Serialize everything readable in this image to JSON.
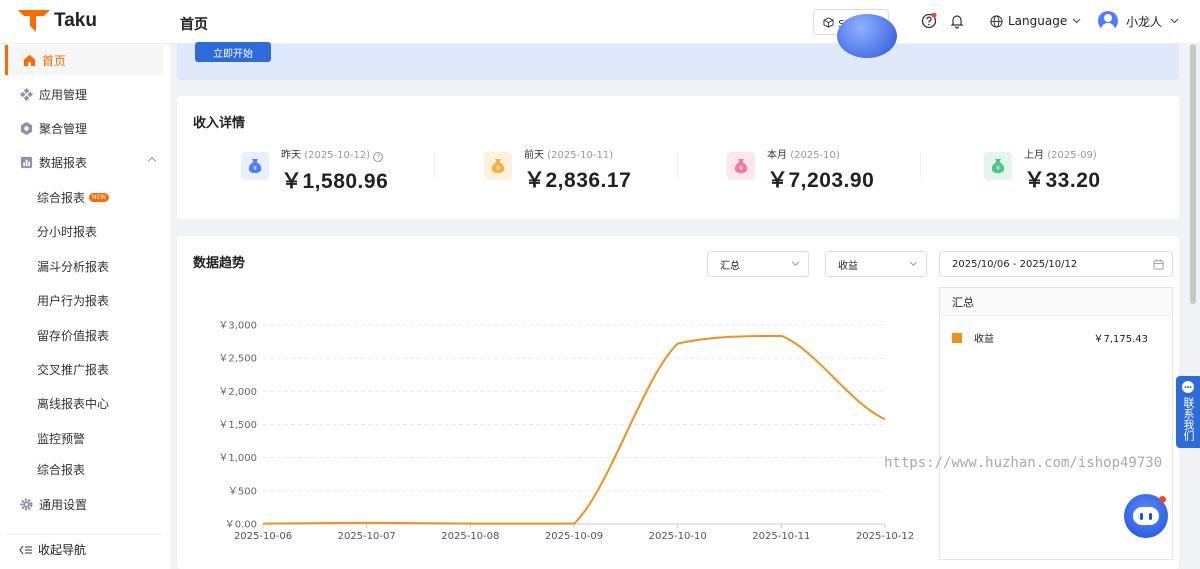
{
  "header": {
    "logo_text": "Taku",
    "page_title": "首页",
    "sdk_button": "SDK下载",
    "language": "Language",
    "username": "小龙人"
  },
  "sidebar": {
    "items": [
      {
        "label": "首页",
        "icon": "home-icon"
      },
      {
        "label": "应用管理",
        "icon": "apps-icon"
      },
      {
        "label": "聚合管理",
        "icon": "aggregate-icon"
      },
      {
        "label": "数据报表",
        "icon": "report-icon"
      },
      {
        "label": "综合报表",
        "badge": "NEW"
      },
      {
        "label": "分小时报表"
      },
      {
        "label": "漏斗分析报表"
      },
      {
        "label": "用户行为报表"
      },
      {
        "label": "留存价值报表"
      },
      {
        "label": "交叉推广报表"
      },
      {
        "label": "离线报表中心"
      },
      {
        "label": "监控预警"
      },
      {
        "label": "综合报表"
      },
      {
        "label": "通用设置",
        "icon": "settings-icon"
      }
    ],
    "collapse_label": "收起导航"
  },
  "banner": {
    "start_button": "立即开始"
  },
  "income": {
    "title": "收入详情",
    "stats": [
      {
        "label": "昨天",
        "date": "(2025-10-12)",
        "value": "￥1,580.96",
        "color": "#4f7cff",
        "bg": "#e8efff"
      },
      {
        "label": "前天",
        "date": "(2025-10-11)",
        "value": "￥2,836.17",
        "color": "#f5b23c",
        "bg": "#fdf1dc"
      },
      {
        "label": "本月",
        "date": "(2025-10)",
        "value": "￥7,203.90",
        "color": "#f27a9b",
        "bg": "#fde6ec"
      },
      {
        "label": "上月",
        "date": "(2025-09)",
        "value": "￥33.20",
        "color": "#4fc48a",
        "bg": "#e2f6ea"
      }
    ]
  },
  "trend": {
    "title": "数据趋势",
    "select_group": "汇总",
    "select_metric": "收益",
    "date_range": "2025/10/06 - 2025/10/12",
    "legend_title": "汇总",
    "legend_series": "收益",
    "legend_value": "￥7,175.43"
  },
  "chart_data": {
    "type": "line",
    "x": [
      "2025-10-06",
      "2025-10-07",
      "2025-10-08",
      "2025-10-09",
      "2025-10-10",
      "2025-10-11",
      "2025-10-12"
    ],
    "series": [
      {
        "name": "收益",
        "values": [
          5,
          18,
          5,
          5,
          2720,
          2836.17,
          1580.96
        ],
        "color": "#f0901e"
      }
    ],
    "y_ticks": [
      "￥0.00",
      "￥500",
      "￥1,000",
      "￥1,500",
      "￥2,000",
      "￥2,500",
      "￥3,000"
    ],
    "ylim": [
      0,
      3000
    ],
    "grid": true
  },
  "floating": {
    "contact_tab": "联系我们",
    "watermark": "https://www.huzhan.com/ishop49730"
  }
}
